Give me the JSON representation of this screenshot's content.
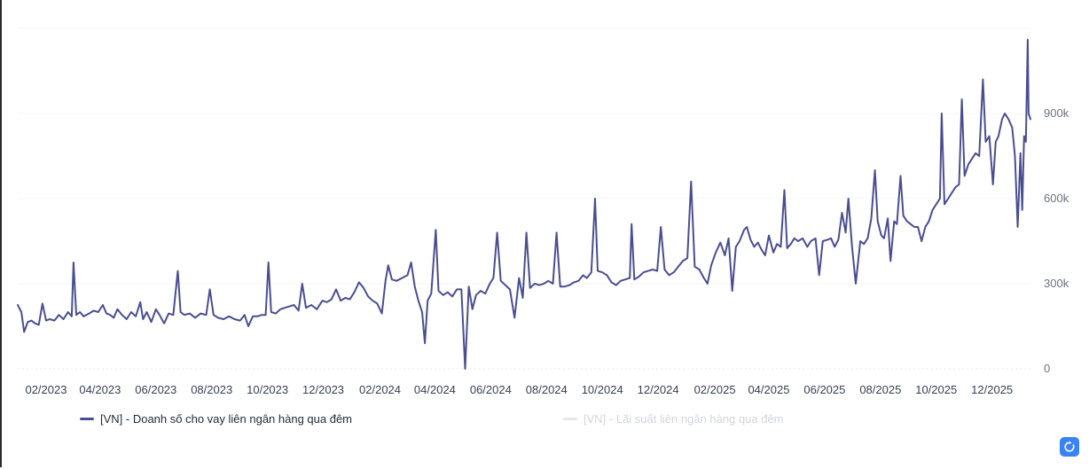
{
  "chart_data": {
    "type": "line",
    "x_tick_labels": [
      "02/2023",
      "04/2023",
      "06/2023",
      "08/2023",
      "10/2023",
      "12/2023",
      "02/2024",
      "04/2024",
      "06/2024",
      "08/2024",
      "10/2024",
      "12/2024",
      "02/2025",
      "04/2025",
      "06/2025",
      "08/2025",
      "10/2025",
      "12/2025"
    ],
    "y_tick_labels": [
      "0",
      "300k",
      "600k",
      "900k"
    ],
    "y_ticks": [
      0,
      300000,
      600000,
      900000,
      1200000
    ],
    "ylim": [
      0,
      1200000
    ],
    "x_range": [
      "2023-01-01",
      "2026-01-12"
    ],
    "grid": true,
    "legend_position": "bottom",
    "series": [
      {
        "name": "[VN] - Doanh số cho vay liên ngân hàng qua đêm",
        "color": "#4a4e8f",
        "visible": true,
        "points": [
          [
            "2023-01-01",
            225000
          ],
          [
            "2023-01-05",
            200000
          ],
          [
            "2023-01-08",
            130000
          ],
          [
            "2023-01-12",
            165000
          ],
          [
            "2023-01-16",
            170000
          ],
          [
            "2023-01-20",
            160000
          ],
          [
            "2023-01-24",
            155000
          ],
          [
            "2023-01-28",
            230000
          ],
          [
            "2023-02-01",
            170000
          ],
          [
            "2023-02-05",
            175000
          ],
          [
            "2023-02-10",
            170000
          ],
          [
            "2023-02-15",
            190000
          ],
          [
            "2023-02-20",
            175000
          ],
          [
            "2023-02-25",
            200000
          ],
          [
            "2023-03-01",
            185000
          ],
          [
            "2023-03-03",
            375000
          ],
          [
            "2023-03-06",
            190000
          ],
          [
            "2023-03-10",
            200000
          ],
          [
            "2023-03-14",
            185000
          ],
          [
            "2023-03-20",
            195000
          ],
          [
            "2023-03-25",
            205000
          ],
          [
            "2023-03-30",
            200000
          ],
          [
            "2023-04-04",
            225000
          ],
          [
            "2023-04-08",
            195000
          ],
          [
            "2023-04-12",
            190000
          ],
          [
            "2023-04-16",
            180000
          ],
          [
            "2023-04-20",
            210000
          ],
          [
            "2023-04-25",
            190000
          ],
          [
            "2023-04-30",
            175000
          ],
          [
            "2023-05-05",
            200000
          ],
          [
            "2023-05-10",
            185000
          ],
          [
            "2023-05-15",
            235000
          ],
          [
            "2023-05-18",
            175000
          ],
          [
            "2023-05-22",
            200000
          ],
          [
            "2023-05-27",
            165000
          ],
          [
            "2023-06-01",
            210000
          ],
          [
            "2023-06-05",
            190000
          ],
          [
            "2023-06-10",
            160000
          ],
          [
            "2023-06-15",
            195000
          ],
          [
            "2023-06-20",
            190000
          ],
          [
            "2023-06-25",
            345000
          ],
          [
            "2023-06-28",
            200000
          ],
          [
            "2023-07-02",
            190000
          ],
          [
            "2023-07-08",
            195000
          ],
          [
            "2023-07-14",
            180000
          ],
          [
            "2023-07-20",
            195000
          ],
          [
            "2023-07-26",
            190000
          ],
          [
            "2023-07-30",
            280000
          ],
          [
            "2023-08-03",
            190000
          ],
          [
            "2023-08-08",
            180000
          ],
          [
            "2023-08-14",
            175000
          ],
          [
            "2023-08-20",
            185000
          ],
          [
            "2023-08-26",
            175000
          ],
          [
            "2023-09-01",
            170000
          ],
          [
            "2023-09-06",
            190000
          ],
          [
            "2023-09-10",
            150000
          ],
          [
            "2023-09-15",
            185000
          ],
          [
            "2023-09-20",
            185000
          ],
          [
            "2023-09-25",
            190000
          ],
          [
            "2023-09-29",
            190000
          ],
          [
            "2023-10-02",
            375000
          ],
          [
            "2023-10-05",
            200000
          ],
          [
            "2023-10-10",
            195000
          ],
          [
            "2023-10-15",
            210000
          ],
          [
            "2023-10-20",
            215000
          ],
          [
            "2023-10-25",
            220000
          ],
          [
            "2023-10-30",
            225000
          ],
          [
            "2023-11-04",
            205000
          ],
          [
            "2023-11-08",
            300000
          ],
          [
            "2023-11-12",
            215000
          ],
          [
            "2023-11-18",
            225000
          ],
          [
            "2023-11-24",
            210000
          ],
          [
            "2023-11-30",
            240000
          ],
          [
            "2023-12-05",
            235000
          ],
          [
            "2023-12-10",
            245000
          ],
          [
            "2023-12-15",
            280000
          ],
          [
            "2023-12-20",
            240000
          ],
          [
            "2023-12-25",
            250000
          ],
          [
            "2023-12-30",
            245000
          ],
          [
            "2024-01-04",
            270000
          ],
          [
            "2024-01-09",
            305000
          ],
          [
            "2024-01-14",
            285000
          ],
          [
            "2024-01-19",
            255000
          ],
          [
            "2024-01-24",
            240000
          ],
          [
            "2024-01-29",
            230000
          ],
          [
            "2024-02-03",
            195000
          ],
          [
            "2024-02-07",
            310000
          ],
          [
            "2024-02-10",
            365000
          ],
          [
            "2024-02-14",
            315000
          ],
          [
            "2024-02-19",
            310000
          ],
          [
            "2024-02-25",
            320000
          ],
          [
            "2024-03-02",
            330000
          ],
          [
            "2024-03-06",
            375000
          ],
          [
            "2024-03-10",
            290000
          ],
          [
            "2024-03-14",
            240000
          ],
          [
            "2024-03-18",
            200000
          ],
          [
            "2024-03-21",
            90000
          ],
          [
            "2024-03-24",
            240000
          ],
          [
            "2024-03-28",
            265000
          ],
          [
            "2024-04-02",
            490000
          ],
          [
            "2024-04-05",
            275000
          ],
          [
            "2024-04-10",
            260000
          ],
          [
            "2024-04-15",
            270000
          ],
          [
            "2024-04-20",
            255000
          ],
          [
            "2024-04-25",
            280000
          ],
          [
            "2024-04-30",
            280000
          ],
          [
            "2024-05-04",
            0
          ],
          [
            "2024-05-08",
            290000
          ],
          [
            "2024-05-12",
            210000
          ],
          [
            "2024-05-16",
            260000
          ],
          [
            "2024-05-21",
            275000
          ],
          [
            "2024-05-26",
            265000
          ],
          [
            "2024-05-31",
            300000
          ],
          [
            "2024-06-04",
            320000
          ],
          [
            "2024-06-08",
            480000
          ],
          [
            "2024-06-12",
            310000
          ],
          [
            "2024-06-17",
            295000
          ],
          [
            "2024-06-22",
            280000
          ],
          [
            "2024-06-27",
            180000
          ],
          [
            "2024-07-02",
            320000
          ],
          [
            "2024-07-06",
            250000
          ],
          [
            "2024-07-10",
            480000
          ],
          [
            "2024-07-14",
            285000
          ],
          [
            "2024-07-19",
            300000
          ],
          [
            "2024-07-24",
            295000
          ],
          [
            "2024-07-29",
            300000
          ],
          [
            "2024-08-03",
            310000
          ],
          [
            "2024-08-08",
            300000
          ],
          [
            "2024-08-12",
            480000
          ],
          [
            "2024-08-16",
            290000
          ],
          [
            "2024-08-21",
            290000
          ],
          [
            "2024-08-26",
            295000
          ],
          [
            "2024-08-31",
            305000
          ],
          [
            "2024-09-05",
            310000
          ],
          [
            "2024-09-10",
            330000
          ],
          [
            "2024-09-14",
            320000
          ],
          [
            "2024-09-19",
            340000
          ],
          [
            "2024-09-23",
            600000
          ],
          [
            "2024-09-26",
            345000
          ],
          [
            "2024-10-01",
            340000
          ],
          [
            "2024-10-06",
            330000
          ],
          [
            "2024-10-11",
            305000
          ],
          [
            "2024-10-16",
            295000
          ],
          [
            "2024-10-21",
            310000
          ],
          [
            "2024-10-26",
            315000
          ],
          [
            "2024-10-31",
            320000
          ],
          [
            "2024-11-02",
            510000
          ],
          [
            "2024-11-05",
            315000
          ],
          [
            "2024-11-10",
            325000
          ],
          [
            "2024-11-15",
            340000
          ],
          [
            "2024-11-20",
            345000
          ],
          [
            "2024-11-25",
            350000
          ],
          [
            "2024-11-30",
            345000
          ],
          [
            "2024-12-04",
            500000
          ],
          [
            "2024-12-08",
            350000
          ],
          [
            "2024-12-13",
            330000
          ],
          [
            "2024-12-18",
            340000
          ],
          [
            "2024-12-23",
            360000
          ],
          [
            "2024-12-28",
            380000
          ],
          [
            "2025-01-02",
            390000
          ],
          [
            "2025-01-06",
            660000
          ],
          [
            "2025-01-10",
            360000
          ],
          [
            "2025-01-15",
            350000
          ],
          [
            "2025-01-20",
            320000
          ],
          [
            "2025-01-24",
            300000
          ],
          [
            "2025-01-28",
            365000
          ],
          [
            "2025-02-02",
            410000
          ],
          [
            "2025-02-07",
            445000
          ],
          [
            "2025-02-12",
            400000
          ],
          [
            "2025-02-16",
            460000
          ],
          [
            "2025-02-20",
            275000
          ],
          [
            "2025-02-24",
            430000
          ],
          [
            "2025-02-28",
            450000
          ],
          [
            "2025-03-05",
            490000
          ],
          [
            "2025-03-08",
            500000
          ],
          [
            "2025-03-12",
            455000
          ],
          [
            "2025-03-16",
            430000
          ],
          [
            "2025-03-20",
            445000
          ],
          [
            "2025-03-24",
            420000
          ],
          [
            "2025-03-28",
            400000
          ],
          [
            "2025-04-01",
            470000
          ],
          [
            "2025-04-06",
            410000
          ],
          [
            "2025-04-10",
            440000
          ],
          [
            "2025-04-14",
            430000
          ],
          [
            "2025-04-18",
            630000
          ],
          [
            "2025-04-21",
            425000
          ],
          [
            "2025-04-25",
            440000
          ],
          [
            "2025-04-29",
            460000
          ],
          [
            "2025-05-03",
            450000
          ],
          [
            "2025-05-08",
            460000
          ],
          [
            "2025-05-13",
            430000
          ],
          [
            "2025-05-17",
            450000
          ],
          [
            "2025-05-22",
            460000
          ],
          [
            "2025-05-26",
            330000
          ],
          [
            "2025-05-30",
            450000
          ],
          [
            "2025-06-04",
            455000
          ],
          [
            "2025-06-08",
            460000
          ],
          [
            "2025-06-12",
            430000
          ],
          [
            "2025-06-16",
            455000
          ],
          [
            "2025-06-20",
            550000
          ],
          [
            "2025-06-24",
            480000
          ],
          [
            "2025-06-27",
            600000
          ],
          [
            "2025-07-01",
            430000
          ],
          [
            "2025-07-05",
            300000
          ],
          [
            "2025-07-10",
            450000
          ],
          [
            "2025-07-14",
            440000
          ],
          [
            "2025-07-18",
            460000
          ],
          [
            "2025-07-22",
            530000
          ],
          [
            "2025-07-26",
            700000
          ],
          [
            "2025-07-29",
            520000
          ],
          [
            "2025-08-02",
            470000
          ],
          [
            "2025-08-05",
            460000
          ],
          [
            "2025-08-09",
            530000
          ],
          [
            "2025-08-12",
            380000
          ],
          [
            "2025-08-16",
            520000
          ],
          [
            "2025-08-19",
            510000
          ],
          [
            "2025-08-23",
            680000
          ],
          [
            "2025-08-26",
            540000
          ],
          [
            "2025-08-30",
            520000
          ],
          [
            "2025-09-03",
            510000
          ],
          [
            "2025-09-07",
            500000
          ],
          [
            "2025-09-11",
            500000
          ],
          [
            "2025-09-15",
            450000
          ],
          [
            "2025-09-19",
            500000
          ],
          [
            "2025-09-23",
            520000
          ],
          [
            "2025-09-27",
            560000
          ],
          [
            "2025-10-01",
            580000
          ],
          [
            "2025-10-05",
            600000
          ],
          [
            "2025-10-07",
            900000
          ],
          [
            "2025-10-10",
            580000
          ],
          [
            "2025-10-14",
            600000
          ],
          [
            "2025-10-18",
            620000
          ],
          [
            "2025-10-22",
            640000
          ],
          [
            "2025-10-26",
            650000
          ],
          [
            "2025-10-29",
            950000
          ],
          [
            "2025-11-01",
            680000
          ],
          [
            "2025-11-05",
            720000
          ],
          [
            "2025-11-09",
            740000
          ],
          [
            "2025-11-13",
            760000
          ],
          [
            "2025-11-17",
            750000
          ],
          [
            "2025-11-21",
            1020000
          ],
          [
            "2025-11-24",
            800000
          ],
          [
            "2025-11-28",
            820000
          ],
          [
            "2025-12-02",
            650000
          ],
          [
            "2025-12-05",
            800000
          ],
          [
            "2025-12-08",
            820000
          ],
          [
            "2025-12-12",
            880000
          ],
          [
            "2025-12-15",
            900000
          ],
          [
            "2025-12-19",
            880000
          ],
          [
            "2025-12-23",
            850000
          ],
          [
            "2025-12-26",
            750000
          ],
          [
            "2025-12-29",
            500000
          ],
          [
            "2026-01-01",
            760000
          ],
          [
            "2026-01-03",
            560000
          ],
          [
            "2026-01-05",
            820000
          ],
          [
            "2026-01-07",
            800000
          ],
          [
            "2026-01-09",
            1160000
          ],
          [
            "2026-01-10",
            900000
          ],
          [
            "2026-01-12",
            880000
          ]
        ]
      },
      {
        "name": "[VN] - Lãi suất liên ngân hàng qua đêm",
        "color": "#d1d5db",
        "visible": false,
        "points": []
      }
    ]
  },
  "controls": {
    "refresh_icon": "refresh-icon"
  }
}
